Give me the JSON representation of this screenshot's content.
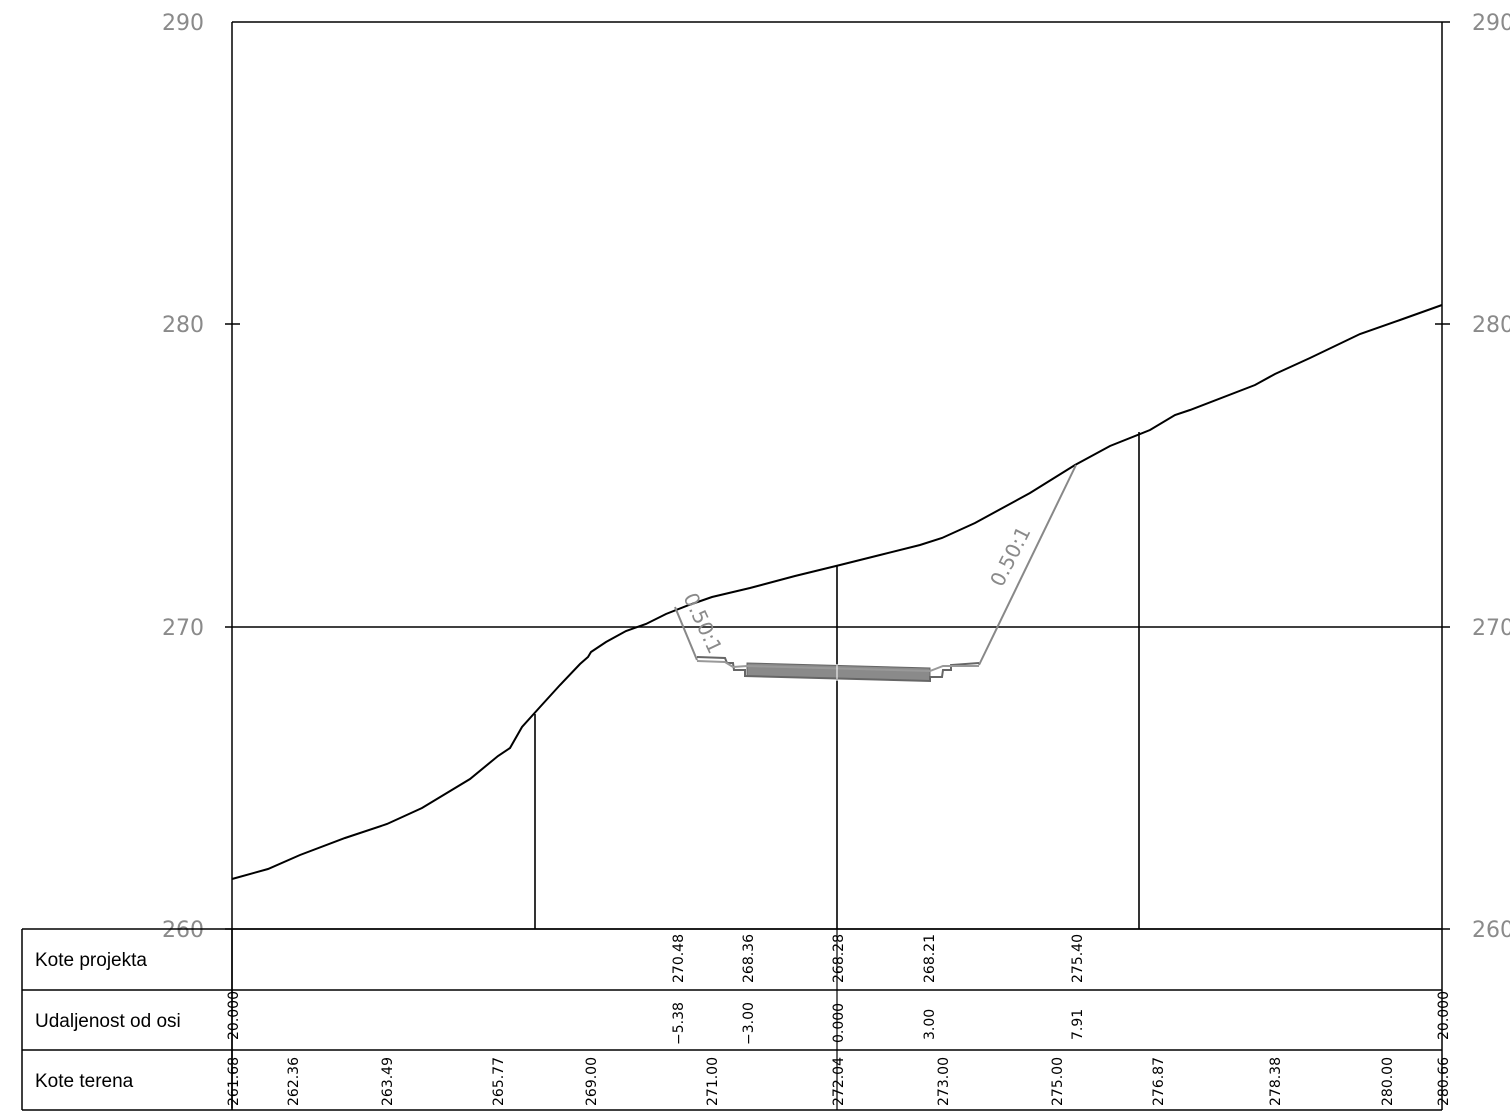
{
  "y_axis": {
    "ticks": [
      "290",
      "280",
      "270",
      "260"
    ],
    "right_ticks": [
      "290",
      "280",
      "270",
      "260"
    ]
  },
  "slopes": {
    "left": "0.50:1",
    "right": "0.50:1"
  },
  "table": {
    "rows": [
      "Kote projekta",
      "Udaljenost od osi",
      "Kote terena"
    ],
    "kote_projekta": [
      "270.48",
      "268.36",
      "268.28",
      "268.21",
      "275.40"
    ],
    "udaljenost_od_osi": [
      "20.000",
      "−5.38",
      "−3.00",
      "0.000",
      "3.00",
      "7.91",
      "20.000"
    ],
    "kote_terena": [
      "261.68",
      "262.36",
      "263.49",
      "265.77",
      "269.00",
      "271.00",
      "272.04",
      "273.00",
      "275.00",
      "276.87",
      "278.38",
      "280.00",
      "280.66"
    ]
  },
  "colors": {
    "terrain": "#000000",
    "road": "#777777",
    "slope": "#888888"
  }
}
